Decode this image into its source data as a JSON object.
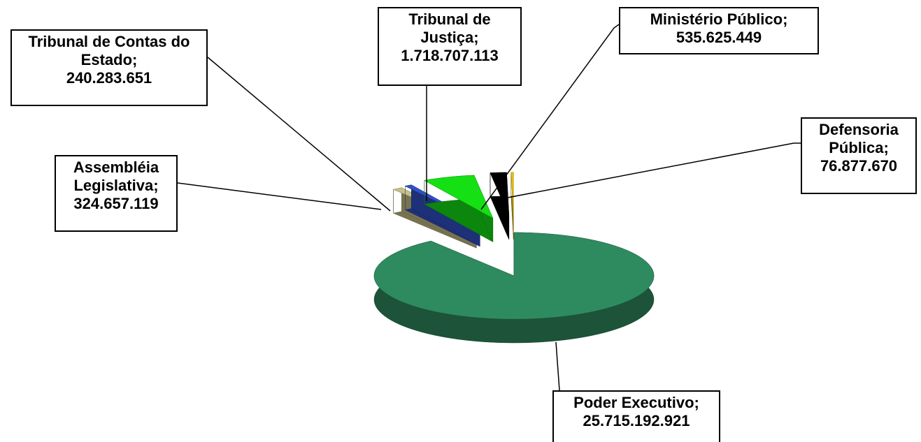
{
  "chart_data": {
    "type": "pie",
    "separator": ";",
    "categories": [
      "Poder Executivo",
      "Assembléia Legislativa",
      "Tribunal de Contas do Estado",
      "Tribunal de Justiça",
      "Ministério Público",
      "Defensoria Pública"
    ],
    "values": [
      25715192921,
      324657119,
      240283651,
      1718707113,
      535625449,
      76877670
    ],
    "value_labels": [
      "25.715.192.921",
      "324.657.119",
      "240.283.651",
      "1.718.707.113",
      "535.625.449",
      "76.877.670"
    ],
    "colors": [
      "#2e8b5f",
      "#c8bf86",
      "#3050c8",
      "#14e014",
      "#000000",
      "#e8c000"
    ]
  }
}
